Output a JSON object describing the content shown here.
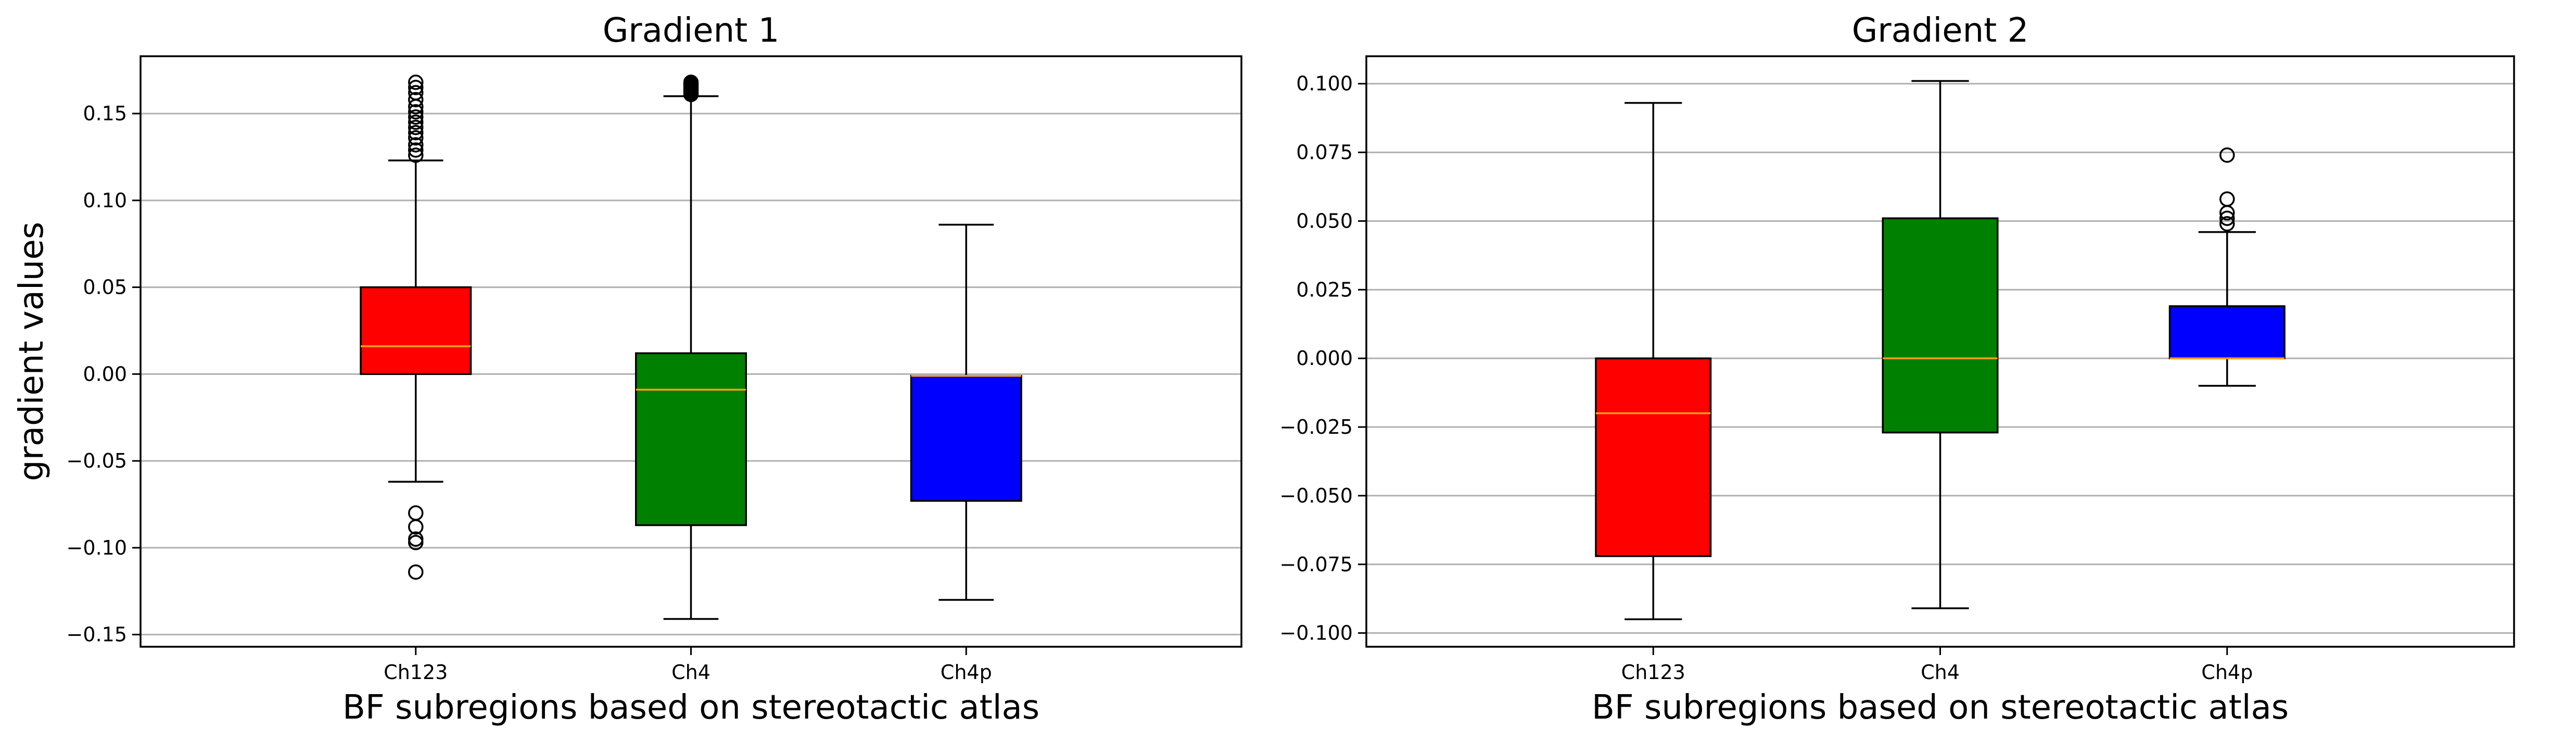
{
  "chart_data": [
    {
      "type": "box",
      "title": "Gradient 1",
      "xlabel": "BF subregions based on stereotactic atlas",
      "ylabel": "gradient values",
      "categories": [
        "Ch123",
        "Ch4",
        "Ch4p"
      ],
      "ylim": [
        -0.157,
        0.183
      ],
      "yticks": [
        -0.15,
        -0.1,
        -0.05,
        0.0,
        0.05,
        0.1,
        0.15
      ],
      "ytick_labels": [
        "−0.15",
        "−0.10",
        "−0.05",
        "0.00",
        "0.05",
        "0.10",
        "0.15"
      ],
      "grid": "y",
      "boxes": [
        {
          "category": "Ch123",
          "color": "#ff0000",
          "whisker_low": -0.062,
          "q1": 0.0,
          "median": 0.016,
          "q3": 0.05,
          "whisker_high": 0.123,
          "outliers": [
            0.126,
            0.129,
            0.132,
            0.136,
            0.139,
            0.142,
            0.145,
            0.148,
            0.151,
            0.154,
            0.158,
            0.162,
            0.165,
            0.168,
            -0.08,
            -0.088,
            -0.095,
            -0.097,
            -0.114
          ]
        },
        {
          "category": "Ch4",
          "color": "#008000",
          "whisker_low": -0.141,
          "q1": -0.087,
          "median": -0.009,
          "q3": 0.012,
          "whisker_high": 0.16,
          "outliers": [
            0.161,
            0.162,
            0.163,
            0.164,
            0.165,
            0.166,
            0.167,
            0.168
          ]
        },
        {
          "category": "Ch4p",
          "color": "#0000ff",
          "whisker_low": -0.13,
          "q1": -0.073,
          "median": -0.001,
          "q3": -0.001,
          "whisker_high": 0.086,
          "outliers": []
        }
      ]
    },
    {
      "type": "box",
      "title": "Gradient 2",
      "xlabel": "BF subregions based on stereotactic atlas",
      "ylabel": "",
      "categories": [
        "Ch123",
        "Ch4",
        "Ch4p"
      ],
      "ylim": [
        -0.105,
        0.11
      ],
      "yticks": [
        -0.1,
        -0.075,
        -0.05,
        -0.025,
        0.0,
        0.025,
        0.05,
        0.075,
        0.1
      ],
      "ytick_labels": [
        "−0.100",
        "−0.075",
        "−0.050",
        "−0.025",
        "0.000",
        "0.025",
        "0.050",
        "0.075",
        "0.100"
      ],
      "grid": "y",
      "boxes": [
        {
          "category": "Ch123",
          "color": "#ff0000",
          "whisker_low": -0.095,
          "q1": -0.072,
          "median": -0.02,
          "q3": 0.0,
          "whisker_high": 0.093,
          "outliers": []
        },
        {
          "category": "Ch4",
          "color": "#008000",
          "whisker_low": -0.091,
          "q1": -0.027,
          "median": 0.0,
          "q3": 0.051,
          "whisker_high": 0.101,
          "outliers": []
        },
        {
          "category": "Ch4p",
          "color": "#0000ff",
          "whisker_low": -0.01,
          "q1": 0.0,
          "median": 0.0,
          "q3": 0.019,
          "whisker_high": 0.046,
          "outliers": [
            0.049,
            0.051,
            0.053,
            0.058,
            0.074
          ]
        }
      ]
    }
  ],
  "colors": {
    "median": "#ff9f1c",
    "grid": "#b0b0b0",
    "axes": "#000000"
  }
}
